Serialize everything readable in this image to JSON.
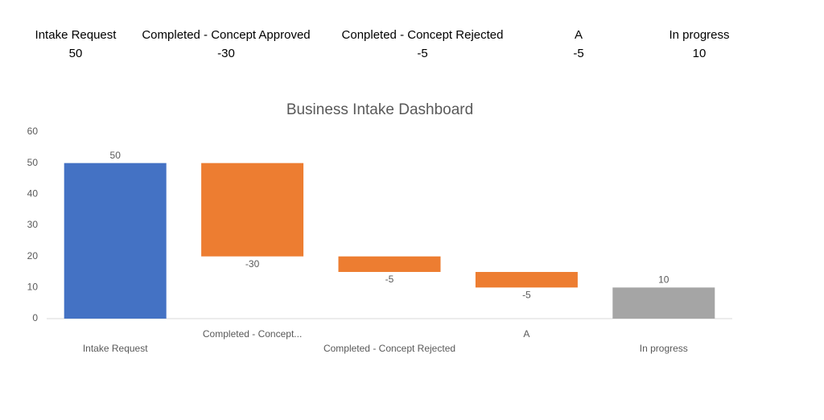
{
  "table": {
    "headers": [
      "Intake Request",
      "Completed - Concept Approved",
      "Conpleted - Concept Rejected",
      "A",
      "In progress"
    ],
    "values": [
      "50",
      "-30",
      "-5",
      "-5",
      "10"
    ]
  },
  "chart_data": {
    "type": "waterfall",
    "title": "Business Intake Dashboard",
    "categories": [
      "Intake Request",
      "Completed - Concept...",
      "Completed - Concept Rejected",
      "A",
      "In progress"
    ],
    "values": [
      50,
      -30,
      -5,
      -5,
      10
    ],
    "totals": [
      true,
      false,
      false,
      false,
      true
    ],
    "colors": [
      "#4472c4",
      "#ed7d31",
      "#ed7d31",
      "#ed7d31",
      "#a5a5a5"
    ],
    "ylim": [
      0,
      60
    ],
    "yticks": [
      0,
      10,
      20,
      30,
      40,
      50,
      60
    ],
    "grid": false
  }
}
